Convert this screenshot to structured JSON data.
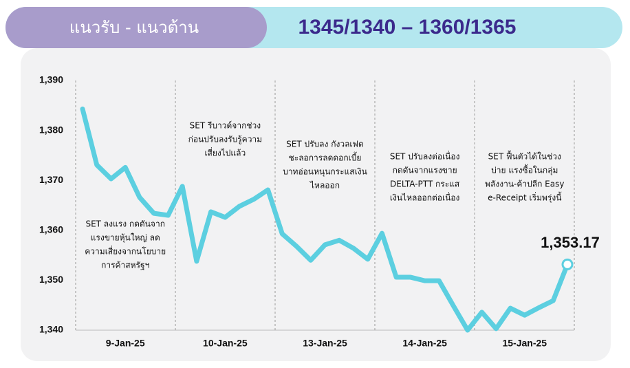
{
  "header": {
    "label": "แนวรับ - แนวต้าน",
    "levels": "1345/1340 – 1360/1365"
  },
  "chart_data": {
    "type": "line",
    "categories": [
      null,
      null,
      null,
      "9-Jan-25",
      null,
      null,
      null,
      null,
      null,
      null,
      "10-Jan-25",
      null,
      null,
      null,
      null,
      null,
      null,
      "13-Jan-25",
      null,
      null,
      null,
      null,
      null,
      null,
      "14-Jan-25",
      null,
      null,
      null,
      null,
      null,
      null,
      "15-Jan-25",
      null,
      null,
      null
    ],
    "values": [
      1384.3,
      1373.1,
      1370.3,
      1372.6,
      1366.6,
      1363.4,
      1363.0,
      1368.8,
      1353.8,
      1363.7,
      1362.6,
      1364.8,
      1366.2,
      1368.1,
      1359.3,
      1356.8,
      1354.0,
      1357.1,
      1358.0,
      1356.4,
      1354.2,
      1359.4,
      1350.6,
      1350.6,
      1349.9,
      1349.9,
      1344.9,
      1340.0,
      1343.6,
      1340.3,
      1344.4,
      1343.0,
      1344.5,
      1345.9,
      1353.17
    ],
    "value_labels": [
      null,
      null,
      null,
      null,
      null,
      null,
      null,
      null,
      null,
      null,
      null,
      null,
      null,
      null,
      null,
      null,
      null,
      null,
      null,
      null,
      null,
      null,
      null,
      null,
      null,
      null,
      null,
      null,
      null,
      null,
      null,
      null,
      null,
      null,
      "1,353.17"
    ],
    "color": "#5ccfe0",
    "ylim": [
      1340,
      1390
    ],
    "yticks": [
      {
        "value": 1340,
        "label": "1,340"
      },
      {
        "value": 1350,
        "label": "1,350"
      },
      {
        "value": 1360,
        "label": "1,360"
      },
      {
        "value": 1370,
        "label": "1,370"
      },
      {
        "value": 1380,
        "label": "1,380"
      },
      {
        "value": 1390,
        "label": "1,390"
      }
    ],
    "annotations": [
      [
        "SET ลงแรง กดดันจาก",
        "แรงขายหุ้นใหญ่ ลด",
        "ความเสี่ยงจากนโยบาย",
        "การค้าสหรัฐฯ"
      ],
      [
        "SET รีบาวด์จากช่วง",
        "ก่อนปรับลงรับรู้ความ",
        "เสี่ยงไปแล้ว"
      ],
      [
        "SET ปรับลง กังวลเฟด",
        "ชะลอการลดดอกเบี้ย",
        "บาทอ่อนหนุนกระแสเงิน",
        "ไหลออก"
      ],
      [
        "SET ปรับลงต่อเนื่อง",
        "กดดันจากแรงขาย",
        "DELTA-PTT กระแส",
        "เงินไหลออกต่อเนื่อง"
      ],
      [
        "SET ฟื้นตัวได้ในช่วง",
        "บ่าย แรงซื้อในกลุ่ม",
        "พลังงาน-ค้าปลีก Easy",
        "e-Receipt เริ่มพรุ่งนี้"
      ]
    ]
  }
}
